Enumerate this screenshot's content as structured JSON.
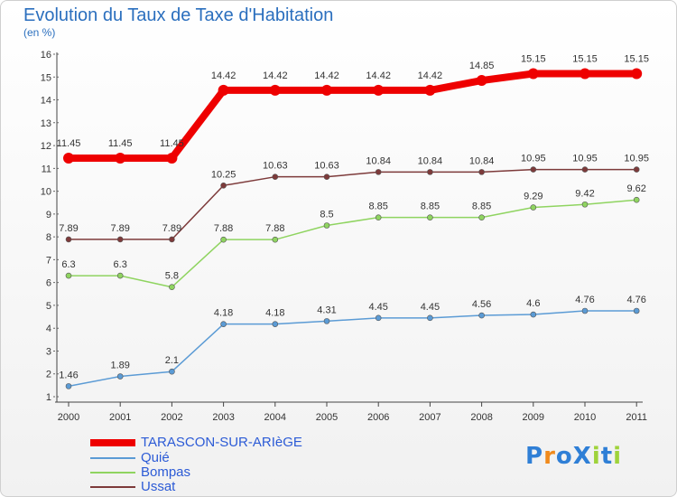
{
  "title": "Evolution du Taux de Taxe d'Habitation",
  "subtitle": "(en %)",
  "logo": {
    "text": "ProXiti",
    "letters": [
      "P",
      "r",
      "o",
      "X",
      "i",
      "t",
      "i"
    ],
    "colors": [
      "#2f7fd6",
      "#f08a1c",
      "#2f7fd6",
      "#2f7fd6",
      "#9fd33b",
      "#2f7fd6",
      "#9fd33b"
    ]
  },
  "chart_data": {
    "type": "line",
    "title": "Evolution du Taux de Taxe d'Habitation",
    "ylabel": "(en %)",
    "xlabel": "",
    "ylim": [
      1,
      16
    ],
    "yticks": [
      "1",
      "2",
      "3",
      "4",
      "5",
      "6",
      "7",
      "8",
      "9",
      "10",
      "11",
      "12",
      "13",
      "14",
      "15",
      "16"
    ],
    "x": [
      "2000",
      "2001",
      "2002",
      "2003",
      "2004",
      "2005",
      "2006",
      "2007",
      "2008",
      "2009",
      "2010",
      "2011"
    ],
    "grid": false,
    "legend_position": "bottom-left",
    "series": [
      {
        "name": "TARASCON-SUR-ARIèGE",
        "color": "#ee0000",
        "values": [
          11.45,
          11.45,
          11.45,
          14.42,
          14.42,
          14.42,
          14.42,
          14.42,
          14.85,
          15.15,
          15.15,
          15.15
        ],
        "labels": [
          "11.45",
          "11.45",
          "11.45",
          "14.42",
          "14.42",
          "14.42",
          "14.42",
          "14.42",
          "14.85",
          "15.15",
          "15.15",
          "15.15"
        ]
      },
      {
        "name": "Quié",
        "color": "#5b9bd5",
        "values": [
          1.46,
          1.89,
          2.1,
          4.18,
          4.18,
          4.31,
          4.45,
          4.45,
          4.56,
          4.6,
          4.76,
          4.76
        ],
        "labels": [
          "1.46",
          "1.89",
          "2.1",
          "4.18",
          "4.18",
          "4.31",
          "4.45",
          "4.45",
          "4.56",
          "4.6",
          "4.76",
          "4.76"
        ]
      },
      {
        "name": "Bompas",
        "color": "#8fd460",
        "values": [
          6.3,
          6.3,
          5.8,
          7.88,
          7.88,
          8.5,
          8.85,
          8.85,
          8.85,
          9.29,
          9.42,
          9.62
        ],
        "labels": [
          "6.3",
          "6.3",
          "5.8",
          "7.88",
          "7.88",
          "8.5",
          "8.85",
          "8.85",
          "8.85",
          "9.29",
          "9.42",
          "9.62"
        ]
      },
      {
        "name": "Ussat",
        "color": "#7d3a3a",
        "values": [
          7.89,
          7.89,
          7.89,
          10.25,
          10.63,
          10.63,
          10.84,
          10.84,
          10.84,
          10.95,
          10.95,
          10.95
        ],
        "labels": [
          "7.89",
          "7.89",
          "7.89",
          "10.25",
          "10.63",
          "10.63",
          "10.84",
          "10.84",
          "10.84",
          "10.95",
          "10.95",
          "10.95"
        ]
      }
    ]
  }
}
